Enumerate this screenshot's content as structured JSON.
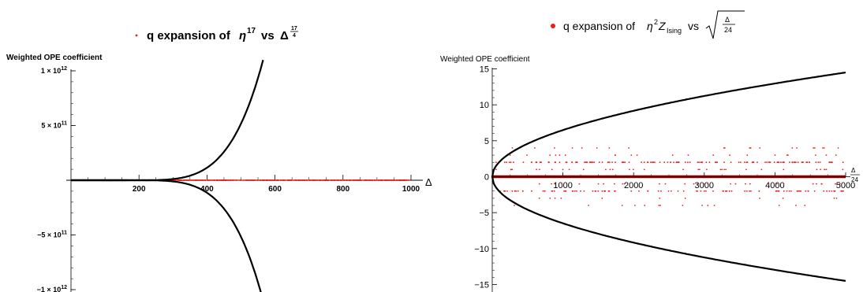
{
  "colors": {
    "points": "#e8201c",
    "curves": "#000000",
    "axis": "#000000",
    "thick_line": "#7a0000"
  },
  "chart_data": [
    {
      "type": "scatter",
      "legend_text": "q expansion of",
      "legend_symbol": "η",
      "legend_power": "17",
      "legend_vs": "vs",
      "legend_delta": "Δ",
      "legend_frac_num": "17",
      "legend_frac_den": "4",
      "ylabel": "Weighted OPE coefficient",
      "xlabel": "Δ",
      "xlim": [
        0,
        1010
      ],
      "ylim": [
        -1100000000000,
        1150000000000
      ],
      "xticks": [
        200,
        400,
        600,
        800,
        1000
      ],
      "xtick_labels": [
        "200",
        "400",
        "600",
        "800",
        "1000"
      ],
      "yticks": [
        1000000000000,
        500000000000,
        -500000000000,
        -1000000000000
      ],
      "ytick_labels": [
        {
          "mant": "1",
          "times": "×",
          "base": "10",
          "exp": "12"
        },
        {
          "mant": "5",
          "times": "×",
          "base": "10",
          "exp": "11"
        },
        {
          "mant": "−5",
          "times": "×",
          "base": "10",
          "exp": "11"
        },
        {
          "mant": "−1",
          "times": "×",
          "base": "10",
          "exp": "12"
        }
      ],
      "bound_curve": {
        "start": 165,
        "coefficient": 9.6e-06,
        "power": 4.25
      },
      "point_envelope": {
        "start": 230,
        "coefficient": 2.6e-07,
        "power": 4.25
      },
      "sampled_points": 720
    },
    {
      "type": "scatter",
      "legend_text": "q expansion of",
      "legend_symbol": "η",
      "legend_power": "2",
      "legend_z": "Z",
      "legend_sub": "Ising",
      "legend_vs": "vs",
      "legend_frac_num": "Δ",
      "legend_frac_den": "24",
      "ylabel": "Weighted OPE coefficient",
      "xlabel_num": "Δ",
      "xlabel_den": "24",
      "xlim": [
        0,
        5100
      ],
      "ylim": [
        -15.2,
        15.3
      ],
      "xticks": [
        1000,
        2000,
        3000,
        4000,
        5000
      ],
      "xtick_labels": [
        "1000",
        "2000",
        "3000",
        "4000",
        "5000"
      ],
      "yticks": [
        15,
        10,
        5,
        0,
        -5,
        -10,
        -15
      ],
      "ytick_labels": [
        "15",
        "10",
        "5",
        "0",
        "−5",
        "−10",
        "−15"
      ],
      "bound_curve": {
        "coefficient": 0.205,
        "power": 0.5
      },
      "point_levels": [
        4,
        3,
        2,
        1,
        -1,
        -2,
        -3,
        -4
      ],
      "sampled_points": 360
    }
  ]
}
